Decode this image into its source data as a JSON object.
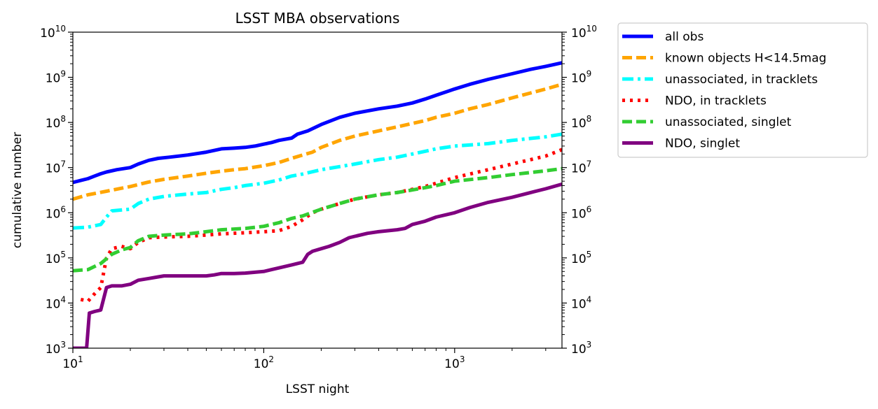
{
  "chart_data": {
    "type": "line",
    "title": "LSST MBA observations",
    "xlabel": "LSST night",
    "ylabel": "cumulative number",
    "xscale": "log",
    "yscale": "log",
    "xlim": [
      10,
      3650
    ],
    "ylim": [
      1000,
      10000000000
    ],
    "x_tick_labels": [
      {
        "value": 10,
        "base": "10",
        "exp": "1"
      },
      {
        "value": 100,
        "base": "10",
        "exp": "2"
      },
      {
        "value": 1000,
        "base": "10",
        "exp": "3"
      }
    ],
    "y_tick_labels": [
      {
        "value": 1000,
        "base": "10",
        "exp": "3"
      },
      {
        "value": 10000,
        "base": "10",
        "exp": "4"
      },
      {
        "value": 100000,
        "base": "10",
        "exp": "5"
      },
      {
        "value": 1000000,
        "base": "10",
        "exp": "6"
      },
      {
        "value": 10000000,
        "base": "10",
        "exp": "7"
      },
      {
        "value": 100000000,
        "base": "10",
        "exp": "8"
      },
      {
        "value": 1000000000,
        "base": "10",
        "exp": "9"
      },
      {
        "value": 10000000000,
        "base": "10",
        "exp": "10"
      }
    ],
    "right_axis_mirrored": true,
    "grid": false,
    "legend_position": "outside-right-top",
    "series": [
      {
        "name": "all obs",
        "color": "#0000ff",
        "style": "solid",
        "x": [
          10,
          11,
          12,
          13,
          14,
          15,
          17,
          20,
          22,
          25,
          28,
          32,
          40,
          50,
          60,
          70,
          80,
          90,
          100,
          110,
          120,
          140,
          150,
          170,
          200,
          250,
          300,
          400,
          500,
          600,
          700,
          800,
          1000,
          1200,
          1500,
          2000,
          2500,
          3000,
          3650
        ],
        "y": [
          4700000.0,
          5200000.0,
          5700000.0,
          6500000.0,
          7300000.0,
          8000000.0,
          9000000.0,
          10000000.0,
          12000000.0,
          14500000.0,
          16000000.0,
          17000000.0,
          19000000.0,
          22000000.0,
          26000000.0,
          27000000.0,
          28000000.0,
          30000000.0,
          33000000.0,
          36000000.0,
          40000000.0,
          45000000.0,
          55000000.0,
          65000000.0,
          90000000.0,
          130000000.0,
          160000000.0,
          200000000.0,
          230000000.0,
          270000000.0,
          330000000.0,
          400000000.0,
          550000000.0,
          700000000.0,
          900000000.0,
          1200000000.0,
          1500000000.0,
          1750000000.0,
          2100000000.0
        ]
      },
      {
        "name": "known objects H<14.5mag",
        "color": "#ffa500",
        "style": "dashed",
        "x": [
          10,
          12,
          15,
          18,
          20,
          25,
          30,
          40,
          50,
          60,
          70,
          80,
          100,
          120,
          140,
          160,
          180,
          200,
          250,
          300,
          400,
          500,
          600,
          700,
          800,
          1000,
          1200,
          1500,
          2000,
          2500,
          3000,
          3650
        ],
        "y": [
          2000000.0,
          2500000.0,
          3000000.0,
          3500000.0,
          3800000.0,
          4800000.0,
          5500000.0,
          6500000.0,
          7500000.0,
          8300000.0,
          9000000.0,
          9500000.0,
          11000000.0,
          13000000.0,
          16000000.0,
          19000000.0,
          22000000.0,
          28000000.0,
          40000000.0,
          50000000.0,
          65000000.0,
          80000000.0,
          95000000.0,
          110000000.0,
          130000000.0,
          160000000.0,
          200000000.0,
          250000000.0,
          350000000.0,
          450000000.0,
          550000000.0,
          700000000.0
        ]
      },
      {
        "name": "unassociated, in tracklets",
        "color": "#00ffff",
        "style": "dashdot",
        "x": [
          10,
          12,
          14,
          15,
          16,
          20,
          22,
          25,
          30,
          40,
          50,
          60,
          70,
          80,
          100,
          120,
          140,
          160,
          200,
          250,
          300,
          400,
          500,
          600,
          700,
          800,
          1000,
          1500,
          2000,
          3000,
          3650
        ],
        "y": [
          460000.0,
          480000.0,
          550000.0,
          800000.0,
          1100000.0,
          1200000.0,
          1600000.0,
          2000000.0,
          2300000.0,
          2600000.0,
          2800000.0,
          3300000.0,
          3600000.0,
          4000000.0,
          4500000.0,
          5300000.0,
          6500000.0,
          7200000.0,
          9000000.0,
          10500000.0,
          12000000.0,
          15000000.0,
          17000000.0,
          20000000.0,
          23000000.0,
          26000000.0,
          30000000.0,
          34000000.0,
          40000000.0,
          48000000.0,
          55000000.0
        ]
      },
      {
        "name": "NDO, in tracklets",
        "color": "#ff0000",
        "style": "dotted",
        "x": [
          11,
          12,
          13,
          14,
          15,
          16,
          18,
          20,
          22,
          25,
          30,
          40,
          50,
          60,
          80,
          100,
          120,
          140,
          160,
          180,
          200,
          250,
          300,
          400,
          500,
          600,
          700,
          800,
          1000,
          1500,
          2000,
          3000,
          3650
        ],
        "y": [
          12000.0,
          11000.0,
          16000.0,
          22000.0,
          100000.0,
          160000.0,
          180000.0,
          160000.0,
          220000.0,
          280000.0,
          290000.0,
          300000.0,
          320000.0,
          340000.0,
          360000.0,
          380000.0,
          400000.0,
          500000.0,
          700000.0,
          1000000.0,
          1200000.0,
          1600000.0,
          2000000.0,
          2500000.0,
          2800000.0,
          3300000.0,
          3800000.0,
          4500000.0,
          6000000.0,
          9000000.0,
          12000000.0,
          18000000.0,
          25000000.0
        ]
      },
      {
        "name": "unassociated, singlet",
        "color": "#32cd32",
        "style": "dashed",
        "x": [
          10,
          12,
          14,
          16,
          18,
          20,
          22,
          25,
          30,
          40,
          50,
          60,
          80,
          100,
          120,
          140,
          160,
          200,
          250,
          300,
          400,
          500,
          600,
          700,
          800,
          1000,
          1500,
          2000,
          3000,
          3650
        ],
        "y": [
          52000.0,
          55000.0,
          75000.0,
          120000.0,
          150000.0,
          170000.0,
          240000.0,
          300000.0,
          320000.0,
          340000.0,
          380000.0,
          420000.0,
          450000.0,
          500000.0,
          600000.0,
          750000.0,
          850000.0,
          1200000.0,
          1600000.0,
          2000000.0,
          2500000.0,
          2800000.0,
          3200000.0,
          3600000.0,
          4000000.0,
          5000000.0,
          6000000.0,
          7000000.0,
          8500000.0,
          9500000.0
        ]
      },
      {
        "name": "NDO, singlet",
        "color": "#800080",
        "style": "solid",
        "x": [
          10,
          11,
          11.8,
          12.2,
          13,
          14,
          15,
          16,
          18,
          20,
          22,
          25,
          28,
          30,
          40,
          50,
          55,
          60,
          70,
          80,
          90,
          100,
          110,
          120,
          140,
          160,
          170,
          180,
          200,
          220,
          250,
          280,
          300,
          350,
          400,
          500,
          550,
          600,
          700,
          800,
          1000,
          1200,
          1500,
          2000,
          2500,
          3000,
          3650
        ],
        "y": [
          1000,
          1000,
          1000,
          6000.0,
          6500.0,
          7000.0,
          22000.0,
          24000.0,
          24000.0,
          26000.0,
          32000.0,
          35000.0,
          38000.0,
          40000.0,
          40000.0,
          40000.0,
          42000.0,
          45000.0,
          45000.0,
          46000.0,
          48000.0,
          50000.0,
          55000.0,
          60000.0,
          70000.0,
          80000.0,
          120000.0,
          140000.0,
          160000.0,
          180000.0,
          220000.0,
          280000.0,
          300000.0,
          350000.0,
          380000.0,
          420000.0,
          450000.0,
          550000.0,
          650000.0,
          800000.0,
          1000000.0,
          1300000.0,
          1700000.0,
          2200000.0,
          2800000.0,
          3400000.0,
          4300000.0
        ]
      }
    ]
  }
}
